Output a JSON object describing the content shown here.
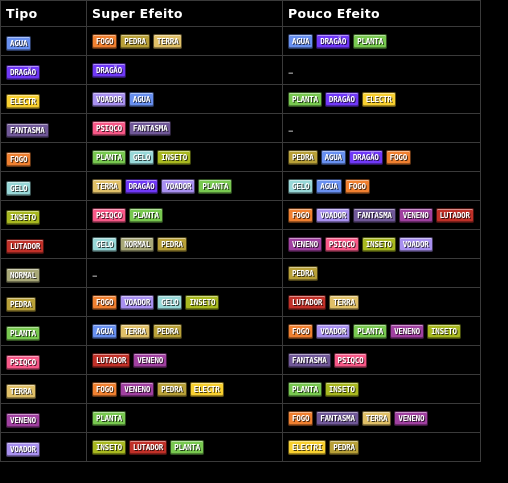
{
  "headers": [
    "Tipo",
    "Super Efeito",
    "Pouco Efeito"
  ],
  "none_text": "–",
  "type_colors": {
    "AGUA": "#6890f0",
    "DRAGÃO": "#7038f8",
    "ELECTR": "#f8d030",
    "FANTASMA": "#705898",
    "FOGO": "#f08030",
    "GELO": "#98d8d8",
    "INSETO": "#a8b820",
    "LUTADOR": "#c03028",
    "NORMAL": "#a8a878",
    "PEDRA": "#b8a038",
    "PLANTA": "#78c850",
    "PSIQCO": "#f85888",
    "TERRA": "#e0c068",
    "VENENO": "#a040a0",
    "VOADOR": "#a890f0",
    "ELECTRI": "#f8d030"
  },
  "rows": [
    {
      "type": "AGUA",
      "super": [
        "FOGO",
        "PEDRA",
        "TERRA"
      ],
      "pouco": [
        "AGUA",
        "DRAGÃO",
        "PLANTA"
      ]
    },
    {
      "type": "DRAGÃO",
      "super": [
        "DRAGÃO"
      ],
      "pouco": []
    },
    {
      "type": "ELECTR",
      "super": [
        "VOADOR",
        "AGUA"
      ],
      "pouco": [
        "PLANTA",
        "DRAGÃO",
        "ELECTR"
      ]
    },
    {
      "type": "FANTASMA",
      "super": [
        "PSIQCO",
        "FANTASMA"
      ],
      "pouco": []
    },
    {
      "type": "FOGO",
      "super": [
        "PLANTA",
        "GELO",
        "INSETO"
      ],
      "pouco": [
        "PEDRA",
        "AGUA",
        "DRAGÃO",
        "FOGO"
      ]
    },
    {
      "type": "GELO",
      "super": [
        "TERRA",
        "DRAGÃO",
        "VOADOR",
        "PLANTA"
      ],
      "pouco": [
        "GELO",
        "AGUA",
        "FOGO"
      ]
    },
    {
      "type": "INSETO",
      "super": [
        "PSIQCO",
        "PLANTA"
      ],
      "pouco": [
        "FOGO",
        "VOADOR",
        "FANTASMA",
        "VENENO",
        "LUTADOR"
      ]
    },
    {
      "type": "LUTADOR",
      "super": [
        "GELO",
        "NORMAL",
        "PEDRA"
      ],
      "pouco": [
        "VENENO",
        "PSIQCO",
        "INSETO",
        "VOADOR"
      ]
    },
    {
      "type": "NORMAL",
      "super": [],
      "pouco": [
        "PEDRA"
      ]
    },
    {
      "type": "PEDRA",
      "super": [
        "FOGO",
        "VOADOR",
        "GELO",
        "INSETO"
      ],
      "pouco": [
        "LUTADOR",
        "TERRA"
      ]
    },
    {
      "type": "PLANTA",
      "super": [
        "AGUA",
        "TERRA",
        "PEDRA"
      ],
      "pouco": [
        "FOGO",
        "VOADOR",
        "PLANTA",
        "VENENO",
        "INSETO"
      ]
    },
    {
      "type": "PSIQCO",
      "super": [
        "LUTADOR",
        "VENENO"
      ],
      "pouco": [
        "FANTASMA",
        "PSIQCO"
      ]
    },
    {
      "type": "TERRA",
      "super": [
        "FOGO",
        "VENENO",
        "PEDRA",
        "ELECTR"
      ],
      "pouco": [
        "PLANTA",
        "INSETO"
      ]
    },
    {
      "type": "VENENO",
      "super": [
        "PLANTA"
      ],
      "pouco": [
        "FOGO",
        "FANTASMA",
        "TERRA",
        "VENENO"
      ]
    },
    {
      "type": "VOADOR",
      "super": [
        "INSETO",
        "LUTADOR",
        "PLANTA"
      ],
      "pouco": [
        "ELECTRI",
        "PEDRA"
      ]
    }
  ]
}
